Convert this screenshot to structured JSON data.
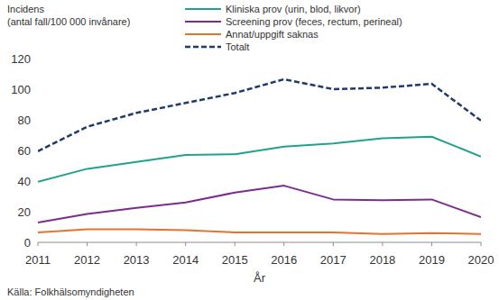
{
  "chart_data": {
    "type": "line",
    "ylabel": [
      "Incidens",
      "(antal fall/100 000 invånare)"
    ],
    "xlabel": "År",
    "source": "Källa: Folkhälsomyndigheten",
    "x": [
      2011,
      2012,
      2013,
      2014,
      2015,
      2016,
      2017,
      2018,
      2019,
      2020
    ],
    "xlim": [
      2011,
      2020
    ],
    "xticks": [
      2011,
      2012,
      2013,
      2014,
      2015,
      2016,
      2017,
      2018,
      2019,
      2020
    ],
    "ylim": [
      0,
      120
    ],
    "yticks": [
      0,
      20,
      40,
      60,
      80,
      100,
      120
    ],
    "grid": false,
    "legend": "top",
    "series": [
      {
        "name": "Kliniska prov (urin, blod, likvor)",
        "color": "#1fa38c",
        "line_style": "solid",
        "values": [
          39.5,
          48,
          52.5,
          57,
          57.5,
          62.5,
          64.5,
          68,
          69,
          56
        ]
      },
      {
        "name": "Screening prov (feces, rectum, perineal)",
        "color": "#7b2d8e",
        "line_style": "solid",
        "values": [
          13,
          18.5,
          22.5,
          26,
          32.5,
          37,
          28,
          27.5,
          28,
          16.5
        ]
      },
      {
        "name": "Annat/uppgift saknas",
        "color": "#e8722c",
        "line_style": "solid",
        "values": [
          6.5,
          8.5,
          8.5,
          8,
          6.5,
          6.5,
          6.5,
          5.5,
          6,
          5.5
        ]
      },
      {
        "name": "Totalt",
        "color": "#1f3a6e",
        "line_style": "dashed",
        "values": [
          59.5,
          75.5,
          84.5,
          91,
          97.5,
          106.5,
          100,
          101,
          103.5,
          79.5
        ]
      }
    ]
  }
}
